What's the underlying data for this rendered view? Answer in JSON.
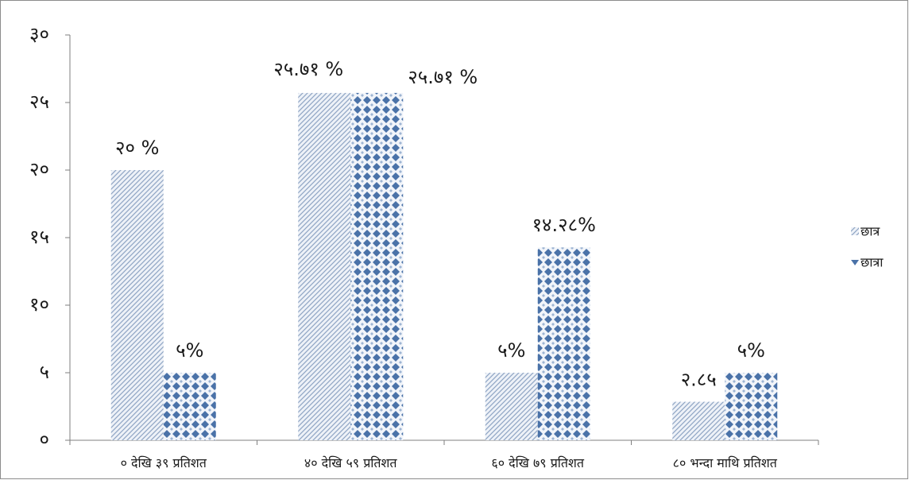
{
  "chart_data": {
    "type": "bar",
    "title": "",
    "xlabel": "",
    "ylabel": "",
    "categories": [
      "० देखि ३९ प्रतिशत",
      "४० देखि ५९ प्रतिशत",
      "६० देखि ७९ प्रतिशत",
      "८०  भन्दा माथि प्रतिशत"
    ],
    "series": [
      {
        "name": "छात्र",
        "values": [
          20,
          25.71,
          5,
          2.85
        ],
        "data_labels": [
          "२० %",
          "२५.७१ %",
          "५%",
          "२.८५"
        ],
        "color": "#9fb4cf",
        "pattern": "diagonal-hatch"
      },
      {
        "name": "छात्रा",
        "values": [
          5,
          25.71,
          14.28,
          5
        ],
        "data_labels": [
          "५%",
          "२५.७१ %",
          "१४.२८%",
          "५%"
        ],
        "color": "#4a72a8",
        "pattern": "diamond-grid"
      }
    ],
    "ylim": [
      0,
      30
    ],
    "yticks": [
      0,
      5,
      10,
      15,
      20,
      25,
      30
    ],
    "ytick_labels": [
      "०",
      "५",
      "१०",
      "१५",
      "२०",
      "२५",
      "३०"
    ],
    "grid": false,
    "legend": "right"
  }
}
